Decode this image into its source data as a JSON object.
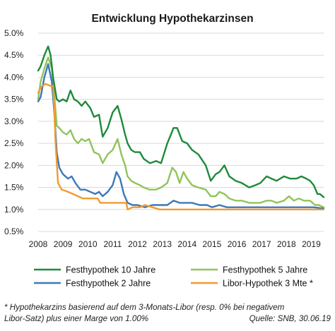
{
  "chart_data": {
    "type": "line",
    "title": "Entwicklung Hypothekarzinsen",
    "xlabel": "",
    "ylabel": "",
    "xlim": [
      2008,
      2019.5
    ],
    "ylim": [
      0.5,
      5.0
    ],
    "y_ticks": [
      "5.0%",
      "4.5%",
      "4.0%",
      "3.5%",
      "3.0%",
      "2.5%",
      "2.0%",
      "1.5%",
      "1.0%",
      "0.5%"
    ],
    "y_tick_values": [
      5.0,
      4.5,
      4.0,
      3.5,
      3.0,
      2.5,
      2.0,
      1.5,
      1.0,
      0.5
    ],
    "x_ticks": [
      "2008",
      "2009",
      "2010",
      "2011",
      "2012",
      "2013",
      "2014",
      "2015",
      "2016",
      "2017",
      "2018",
      "2019"
    ],
    "x_tick_values": [
      2008,
      2009,
      2010,
      2011,
      2012,
      2013,
      2014,
      2015,
      2016,
      2017,
      2018,
      2019
    ],
    "grid": "horizontal",
    "legend_position": "bottom",
    "series": [
      {
        "name": "Festhypothek 10 Jahre",
        "color": "#1e8a3a",
        "points": [
          [
            2008.0,
            4.15
          ],
          [
            2008.1,
            4.25
          ],
          [
            2008.25,
            4.5
          ],
          [
            2008.4,
            4.7
          ],
          [
            2008.5,
            4.5
          ],
          [
            2008.6,
            4.0
          ],
          [
            2008.75,
            3.5
          ],
          [
            2008.85,
            3.45
          ],
          [
            2009.0,
            3.5
          ],
          [
            2009.15,
            3.45
          ],
          [
            2009.3,
            3.7
          ],
          [
            2009.45,
            3.5
          ],
          [
            2009.6,
            3.45
          ],
          [
            2009.75,
            3.35
          ],
          [
            2009.9,
            3.45
          ],
          [
            2010.1,
            3.3
          ],
          [
            2010.25,
            3.1
          ],
          [
            2010.45,
            3.15
          ],
          [
            2010.6,
            2.65
          ],
          [
            2010.8,
            2.85
          ],
          [
            2011.0,
            3.2
          ],
          [
            2011.2,
            3.35
          ],
          [
            2011.35,
            3.05
          ],
          [
            2011.5,
            2.7
          ],
          [
            2011.6,
            2.5
          ],
          [
            2011.75,
            2.35
          ],
          [
            2011.9,
            2.3
          ],
          [
            2012.1,
            2.3
          ],
          [
            2012.25,
            2.15
          ],
          [
            2012.5,
            2.05
          ],
          [
            2012.75,
            2.1
          ],
          [
            2012.95,
            2.05
          ],
          [
            2013.2,
            2.5
          ],
          [
            2013.35,
            2.7
          ],
          [
            2013.45,
            2.85
          ],
          [
            2013.6,
            2.85
          ],
          [
            2013.8,
            2.55
          ],
          [
            2014.0,
            2.5
          ],
          [
            2014.2,
            2.35
          ],
          [
            2014.45,
            2.25
          ],
          [
            2014.75,
            2.0
          ],
          [
            2014.95,
            1.65
          ],
          [
            2015.15,
            1.8
          ],
          [
            2015.3,
            1.85
          ],
          [
            2015.5,
            2.0
          ],
          [
            2015.7,
            1.75
          ],
          [
            2015.95,
            1.65
          ],
          [
            2016.2,
            1.6
          ],
          [
            2016.5,
            1.5
          ],
          [
            2016.75,
            1.55
          ],
          [
            2016.95,
            1.6
          ],
          [
            2017.2,
            1.75
          ],
          [
            2017.4,
            1.7
          ],
          [
            2017.6,
            1.65
          ],
          [
            2017.9,
            1.75
          ],
          [
            2018.15,
            1.7
          ],
          [
            2018.4,
            1.7
          ],
          [
            2018.6,
            1.75
          ],
          [
            2018.8,
            1.7
          ],
          [
            2018.95,
            1.65
          ],
          [
            2019.1,
            1.55
          ],
          [
            2019.25,
            1.35
          ],
          [
            2019.35,
            1.35
          ],
          [
            2019.5,
            1.28
          ]
        ]
      },
      {
        "name": "Festhypothek 5 Jahre",
        "color": "#8fc45a",
        "points": [
          [
            2008.0,
            3.5
          ],
          [
            2008.1,
            3.9
          ],
          [
            2008.25,
            4.2
          ],
          [
            2008.4,
            4.45
          ],
          [
            2008.55,
            4.2
          ],
          [
            2008.65,
            3.6
          ],
          [
            2008.75,
            2.9
          ],
          [
            2008.85,
            2.85
          ],
          [
            2009.0,
            2.75
          ],
          [
            2009.15,
            2.7
          ],
          [
            2009.3,
            2.8
          ],
          [
            2009.45,
            2.6
          ],
          [
            2009.6,
            2.5
          ],
          [
            2009.75,
            2.6
          ],
          [
            2009.9,
            2.55
          ],
          [
            2010.05,
            2.6
          ],
          [
            2010.25,
            2.3
          ],
          [
            2010.45,
            2.25
          ],
          [
            2010.6,
            2.05
          ],
          [
            2010.8,
            2.25
          ],
          [
            2011.0,
            2.35
          ],
          [
            2011.2,
            2.6
          ],
          [
            2011.35,
            2.25
          ],
          [
            2011.5,
            2.0
          ],
          [
            2011.6,
            1.75
          ],
          [
            2011.75,
            1.65
          ],
          [
            2011.9,
            1.6
          ],
          [
            2012.1,
            1.55
          ],
          [
            2012.25,
            1.5
          ],
          [
            2012.5,
            1.45
          ],
          [
            2012.75,
            1.45
          ],
          [
            2012.95,
            1.5
          ],
          [
            2013.2,
            1.6
          ],
          [
            2013.4,
            1.95
          ],
          [
            2013.55,
            1.85
          ],
          [
            2013.7,
            1.6
          ],
          [
            2013.85,
            1.85
          ],
          [
            2014.0,
            1.7
          ],
          [
            2014.2,
            1.55
          ],
          [
            2014.45,
            1.5
          ],
          [
            2014.75,
            1.45
          ],
          [
            2014.95,
            1.3
          ],
          [
            2015.15,
            1.3
          ],
          [
            2015.3,
            1.4
          ],
          [
            2015.5,
            1.35
          ],
          [
            2015.7,
            1.25
          ],
          [
            2015.95,
            1.2
          ],
          [
            2016.2,
            1.2
          ],
          [
            2016.5,
            1.15
          ],
          [
            2016.75,
            1.15
          ],
          [
            2016.95,
            1.15
          ],
          [
            2017.2,
            1.2
          ],
          [
            2017.4,
            1.2
          ],
          [
            2017.6,
            1.15
          ],
          [
            2017.9,
            1.2
          ],
          [
            2018.1,
            1.3
          ],
          [
            2018.3,
            1.2
          ],
          [
            2018.5,
            1.25
          ],
          [
            2018.7,
            1.2
          ],
          [
            2018.95,
            1.2
          ],
          [
            2019.15,
            1.1
          ],
          [
            2019.3,
            1.1
          ],
          [
            2019.5,
            1.05
          ]
        ]
      },
      {
        "name": "Festhypothek 2 Jahre",
        "color": "#3d78b8",
        "points": [
          [
            2008.0,
            3.45
          ],
          [
            2008.1,
            3.55
          ],
          [
            2008.25,
            4.0
          ],
          [
            2008.4,
            4.3
          ],
          [
            2008.55,
            3.9
          ],
          [
            2008.65,
            3.2
          ],
          [
            2008.75,
            2.3
          ],
          [
            2008.85,
            1.95
          ],
          [
            2009.0,
            1.8
          ],
          [
            2009.2,
            1.7
          ],
          [
            2009.35,
            1.75
          ],
          [
            2009.5,
            1.6
          ],
          [
            2009.7,
            1.45
          ],
          [
            2009.9,
            1.45
          ],
          [
            2010.1,
            1.4
          ],
          [
            2010.3,
            1.35
          ],
          [
            2010.45,
            1.4
          ],
          [
            2010.6,
            1.3
          ],
          [
            2010.8,
            1.4
          ],
          [
            2011.0,
            1.55
          ],
          [
            2011.15,
            1.85
          ],
          [
            2011.3,
            1.7
          ],
          [
            2011.45,
            1.35
          ],
          [
            2011.6,
            1.15
          ],
          [
            2011.8,
            1.1
          ],
          [
            2012.0,
            1.1
          ],
          [
            2012.3,
            1.05
          ],
          [
            2012.6,
            1.1
          ],
          [
            2012.9,
            1.1
          ],
          [
            2013.2,
            1.1
          ],
          [
            2013.45,
            1.2
          ],
          [
            2013.7,
            1.15
          ],
          [
            2013.9,
            1.15
          ],
          [
            2014.2,
            1.15
          ],
          [
            2014.5,
            1.1
          ],
          [
            2014.8,
            1.1
          ],
          [
            2015.0,
            1.05
          ],
          [
            2015.3,
            1.1
          ],
          [
            2015.6,
            1.05
          ],
          [
            2015.9,
            1.05
          ],
          [
            2016.3,
            1.05
          ],
          [
            2016.7,
            1.05
          ],
          [
            2017.1,
            1.05
          ],
          [
            2017.5,
            1.05
          ],
          [
            2017.9,
            1.05
          ],
          [
            2018.3,
            1.05
          ],
          [
            2018.7,
            1.05
          ],
          [
            2019.1,
            1.05
          ],
          [
            2019.5,
            1.02
          ]
        ]
      },
      {
        "name": "Libor-Hypothek 3 Mte *",
        "color": "#f29a2e",
        "points": [
          [
            2008.0,
            3.65
          ],
          [
            2008.15,
            3.8
          ],
          [
            2008.3,
            3.85
          ],
          [
            2008.5,
            3.8
          ],
          [
            2008.6,
            3.8
          ],
          [
            2008.65,
            3.3
          ],
          [
            2008.7,
            2.5
          ],
          [
            2008.8,
            1.6
          ],
          [
            2008.95,
            1.45
          ],
          [
            2009.2,
            1.4
          ],
          [
            2009.4,
            1.35
          ],
          [
            2009.6,
            1.3
          ],
          [
            2009.8,
            1.25
          ],
          [
            2010.0,
            1.25
          ],
          [
            2010.4,
            1.25
          ],
          [
            2010.5,
            1.15
          ],
          [
            2010.8,
            1.15
          ],
          [
            2011.0,
            1.15
          ],
          [
            2011.3,
            1.15
          ],
          [
            2011.55,
            1.15
          ],
          [
            2011.6,
            1.0
          ],
          [
            2011.8,
            1.05
          ],
          [
            2012.1,
            1.05
          ],
          [
            2012.3,
            1.1
          ],
          [
            2012.6,
            1.05
          ],
          [
            2012.9,
            1.0
          ],
          [
            2013.3,
            1.0
          ],
          [
            2013.8,
            1.0
          ],
          [
            2014.3,
            1.0
          ],
          [
            2014.8,
            1.0
          ],
          [
            2015.2,
            1.0
          ],
          [
            2016.0,
            1.0
          ],
          [
            2017.0,
            1.0
          ],
          [
            2018.0,
            1.0
          ],
          [
            2019.0,
            1.0
          ],
          [
            2019.5,
            1.0
          ]
        ]
      }
    ],
    "footnote": {
      "line1": "* Hypothekarzins basierend auf dem 3-Monats-Libor (resp. 0% bei negativem",
      "line2": "Libor-Satz) plus einer Marge von 1.00%",
      "source": "Quelle: SNB, 30.06.19"
    }
  }
}
